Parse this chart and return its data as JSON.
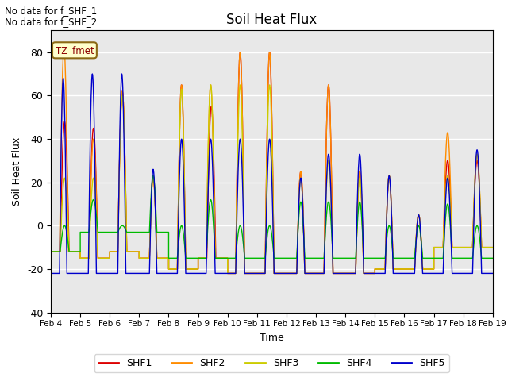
{
  "title": "Soil Heat Flux",
  "ylabel": "Soil Heat Flux",
  "xlabel": "Time",
  "ylim": [
    -40,
    90
  ],
  "background_color": "#e8e8e8",
  "annotations": [
    "No data for f_SHF_1",
    "No data for f_SHF_2"
  ],
  "tz_label": "TZ_fmet",
  "legend": [
    {
      "label": "SHF1",
      "color": "#dd0000"
    },
    {
      "label": "SHF2",
      "color": "#ff8c00"
    },
    {
      "label": "SHF3",
      "color": "#cccc00"
    },
    {
      "label": "SHF4",
      "color": "#00bb00"
    },
    {
      "label": "SHF5",
      "color": "#0000cc"
    }
  ],
  "xtick_positions": [
    0,
    1,
    2,
    3,
    4,
    5,
    6,
    7,
    8,
    9,
    10,
    11,
    12,
    13,
    14,
    15
  ],
  "xtick_labels": [
    "Feb 4",
    "Feb 5",
    "Feb 6",
    "Feb 7",
    "Feb 8",
    "Feb 9",
    "Feb 10",
    "Feb 11",
    "Feb 12",
    "Feb 13",
    "Feb 14",
    "Feb 15",
    "Feb 16",
    "Feb 17",
    "Feb 18",
    "Feb 19"
  ],
  "ytick_values": [
    -40,
    -20,
    0,
    20,
    40,
    60,
    80
  ],
  "xlim": [
    0,
    15
  ]
}
